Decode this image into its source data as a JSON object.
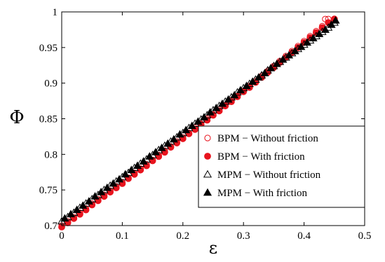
{
  "chart_data": {
    "type": "scatter",
    "xlabel": "ε",
    "ylabel": "Φ",
    "xlim": [
      0,
      0.5
    ],
    "ylim": [
      0.7,
      1.0
    ],
    "x_ticks": [
      "0",
      "0.1",
      "0.2",
      "0.3",
      "0.4",
      "0.5"
    ],
    "y_ticks": [
      "0.7",
      "0.75",
      "0.8",
      "0.85",
      "0.9",
      "0.95",
      "1"
    ],
    "grid": false,
    "legend_position": "bottom-right",
    "series": [
      {
        "name": "BPM − Without friction",
        "marker": "circle-open",
        "color": "#e8141e",
        "x": [
          0.0,
          0.01,
          0.02,
          0.03,
          0.04,
          0.05,
          0.06,
          0.07,
          0.08,
          0.09,
          0.1,
          0.11,
          0.12,
          0.13,
          0.14,
          0.15,
          0.16,
          0.17,
          0.18,
          0.19,
          0.2,
          0.21,
          0.22,
          0.23,
          0.24,
          0.25,
          0.26,
          0.27,
          0.28,
          0.29,
          0.3,
          0.31,
          0.32,
          0.33,
          0.34,
          0.35,
          0.36,
          0.37,
          0.38,
          0.39,
          0.4,
          0.41,
          0.42,
          0.43,
          0.435,
          0.44,
          0.45
        ],
        "y": [
          0.7,
          0.706,
          0.712,
          0.718,
          0.724,
          0.731,
          0.737,
          0.743,
          0.749,
          0.755,
          0.761,
          0.767,
          0.774,
          0.78,
          0.786,
          0.792,
          0.799,
          0.805,
          0.811,
          0.818,
          0.824,
          0.83,
          0.837,
          0.843,
          0.85,
          0.856,
          0.863,
          0.869,
          0.876,
          0.882,
          0.889,
          0.896,
          0.903,
          0.91,
          0.917,
          0.924,
          0.931,
          0.938,
          0.945,
          0.952,
          0.959,
          0.966,
          0.973,
          0.98,
          0.99,
          0.99,
          0.99
        ]
      },
      {
        "name": "BPM − With friction",
        "marker": "circle-filled",
        "color": "#e8141e",
        "x": [
          0.0,
          0.01,
          0.02,
          0.03,
          0.04,
          0.05,
          0.06,
          0.07,
          0.08,
          0.09,
          0.1,
          0.11,
          0.12,
          0.13,
          0.14,
          0.15,
          0.16,
          0.17,
          0.18,
          0.19,
          0.2,
          0.21,
          0.22,
          0.23,
          0.24,
          0.25,
          0.26,
          0.27,
          0.28,
          0.29,
          0.3,
          0.31,
          0.32,
          0.33,
          0.34,
          0.35,
          0.36,
          0.37,
          0.38,
          0.39,
          0.4,
          0.41,
          0.42,
          0.43,
          0.44,
          0.45
        ],
        "y": [
          0.698,
          0.704,
          0.71,
          0.716,
          0.722,
          0.729,
          0.735,
          0.741,
          0.747,
          0.753,
          0.759,
          0.766,
          0.772,
          0.778,
          0.784,
          0.791,
          0.797,
          0.803,
          0.81,
          0.816,
          0.822,
          0.829,
          0.835,
          0.842,
          0.848,
          0.855,
          0.861,
          0.868,
          0.874,
          0.881,
          0.888,
          0.894,
          0.901,
          0.908,
          0.915,
          0.922,
          0.929,
          0.936,
          0.943,
          0.95,
          0.957,
          0.964,
          0.971,
          0.978,
          0.985,
          0.99
        ]
      },
      {
        "name": "MPM − Without friction",
        "marker": "triangle-open",
        "color": "#000000",
        "x": [
          0.0,
          0.01,
          0.02,
          0.03,
          0.04,
          0.05,
          0.06,
          0.07,
          0.08,
          0.09,
          0.1,
          0.11,
          0.12,
          0.13,
          0.14,
          0.15,
          0.16,
          0.17,
          0.18,
          0.19,
          0.2,
          0.21,
          0.22,
          0.23,
          0.24,
          0.25,
          0.26,
          0.27,
          0.28,
          0.29,
          0.3,
          0.31,
          0.32,
          0.33,
          0.34,
          0.35,
          0.36,
          0.37,
          0.38,
          0.39,
          0.4,
          0.41,
          0.42,
          0.43,
          0.44,
          0.45
        ],
        "y": [
          0.706,
          0.712,
          0.718,
          0.725,
          0.731,
          0.737,
          0.743,
          0.75,
          0.756,
          0.762,
          0.768,
          0.774,
          0.781,
          0.787,
          0.793,
          0.799,
          0.806,
          0.812,
          0.818,
          0.824,
          0.83,
          0.837,
          0.843,
          0.849,
          0.855,
          0.862,
          0.868,
          0.874,
          0.88,
          0.887,
          0.893,
          0.899,
          0.905,
          0.911,
          0.918,
          0.924,
          0.93,
          0.936,
          0.942,
          0.948,
          0.954,
          0.96,
          0.966,
          0.972,
          0.978,
          0.985
        ]
      },
      {
        "name": "MPM − With friction",
        "marker": "triangle-filled",
        "color": "#000000",
        "x": [
          0.005,
          0.015,
          0.025,
          0.035,
          0.045,
          0.055,
          0.065,
          0.075,
          0.085,
          0.095,
          0.105,
          0.115,
          0.125,
          0.135,
          0.145,
          0.155,
          0.165,
          0.175,
          0.185,
          0.195,
          0.205,
          0.215,
          0.225,
          0.235,
          0.245,
          0.255,
          0.265,
          0.275,
          0.285,
          0.295,
          0.305,
          0.315,
          0.325,
          0.335,
          0.345,
          0.355,
          0.365,
          0.375,
          0.385,
          0.395,
          0.405,
          0.415,
          0.425,
          0.435,
          0.445,
          0.452
        ],
        "y": [
          0.71,
          0.716,
          0.722,
          0.728,
          0.734,
          0.741,
          0.747,
          0.753,
          0.759,
          0.765,
          0.772,
          0.778,
          0.784,
          0.79,
          0.797,
          0.803,
          0.809,
          0.815,
          0.821,
          0.828,
          0.834,
          0.84,
          0.846,
          0.852,
          0.859,
          0.865,
          0.871,
          0.877,
          0.883,
          0.89,
          0.896,
          0.902,
          0.908,
          0.914,
          0.921,
          0.927,
          0.933,
          0.939,
          0.945,
          0.951,
          0.957,
          0.963,
          0.969,
          0.975,
          0.982,
          0.988
        ]
      }
    ]
  }
}
